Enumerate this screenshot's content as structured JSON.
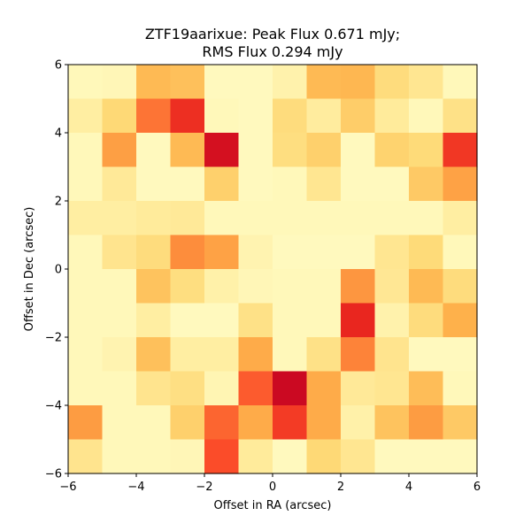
{
  "chart_data": {
    "type": "heatmap",
    "title_lines": [
      "ZTF19aarixue: Peak Flux 0.671 mJy;",
      "RMS Flux 0.294 mJy"
    ],
    "xlabel": "Offset in RA (arcsec)",
    "ylabel": "Offset in Dec (arcsec)",
    "xlim": [
      -6,
      6
    ],
    "ylim": [
      -6,
      6
    ],
    "xticks": [
      -6,
      -4,
      -2,
      0,
      2,
      4,
      6
    ],
    "yticks": [
      -6,
      -4,
      -2,
      0,
      2,
      4,
      6
    ],
    "xtick_labels": [
      "−6",
      "−4",
      "−2",
      "0",
      "2",
      "4",
      "6"
    ],
    "ytick_labels": [
      "−6",
      "−4",
      "−2",
      "0",
      "2",
      "4",
      "6"
    ],
    "colormap": "YlOrRd",
    "value_range": [
      0,
      1
    ],
    "grid": {
      "cols": 12,
      "rows": 12,
      "cell_size_arcsec": 1
    },
    "rows_top_to_bottom": [
      [
        0.05,
        0.06,
        0.35,
        0.33,
        0.04,
        0.04,
        0.09,
        0.35,
        0.36,
        0.23,
        0.17,
        0.05
      ],
      [
        0.12,
        0.25,
        0.55,
        0.7,
        0.05,
        0.04,
        0.23,
        0.13,
        0.29,
        0.14,
        0.05,
        0.2
      ],
      [
        0.05,
        0.44,
        0.04,
        0.35,
        0.8,
        0.04,
        0.22,
        0.28,
        0.04,
        0.27,
        0.24,
        0.68
      ],
      [
        0.05,
        0.15,
        0.04,
        0.04,
        0.28,
        0.04,
        0.05,
        0.17,
        0.04,
        0.04,
        0.3,
        0.43
      ],
      [
        0.12,
        0.12,
        0.14,
        0.15,
        0.05,
        0.05,
        0.05,
        0.05,
        0.05,
        0.05,
        0.05,
        0.12
      ],
      [
        0.05,
        0.18,
        0.23,
        0.5,
        0.43,
        0.08,
        0.04,
        0.04,
        0.04,
        0.17,
        0.24,
        0.05
      ],
      [
        0.05,
        0.05,
        0.32,
        0.22,
        0.1,
        0.06,
        0.05,
        0.05,
        0.47,
        0.16,
        0.35,
        0.23
      ],
      [
        0.05,
        0.05,
        0.12,
        0.04,
        0.04,
        0.2,
        0.05,
        0.05,
        0.72,
        0.09,
        0.23,
        0.38
      ],
      [
        0.05,
        0.08,
        0.33,
        0.12,
        0.12,
        0.4,
        0.05,
        0.2,
        0.52,
        0.18,
        0.04,
        0.04
      ],
      [
        0.05,
        0.05,
        0.18,
        0.21,
        0.07,
        0.6,
        0.83,
        0.4,
        0.15,
        0.17,
        0.34,
        0.05
      ],
      [
        0.45,
        0.05,
        0.05,
        0.28,
        0.58,
        0.4,
        0.67,
        0.4,
        0.1,
        0.32,
        0.45,
        0.3
      ],
      [
        0.18,
        0.05,
        0.05,
        0.06,
        0.63,
        0.14,
        0.04,
        0.25,
        0.17,
        0.04,
        0.04,
        0.04
      ]
    ]
  }
}
